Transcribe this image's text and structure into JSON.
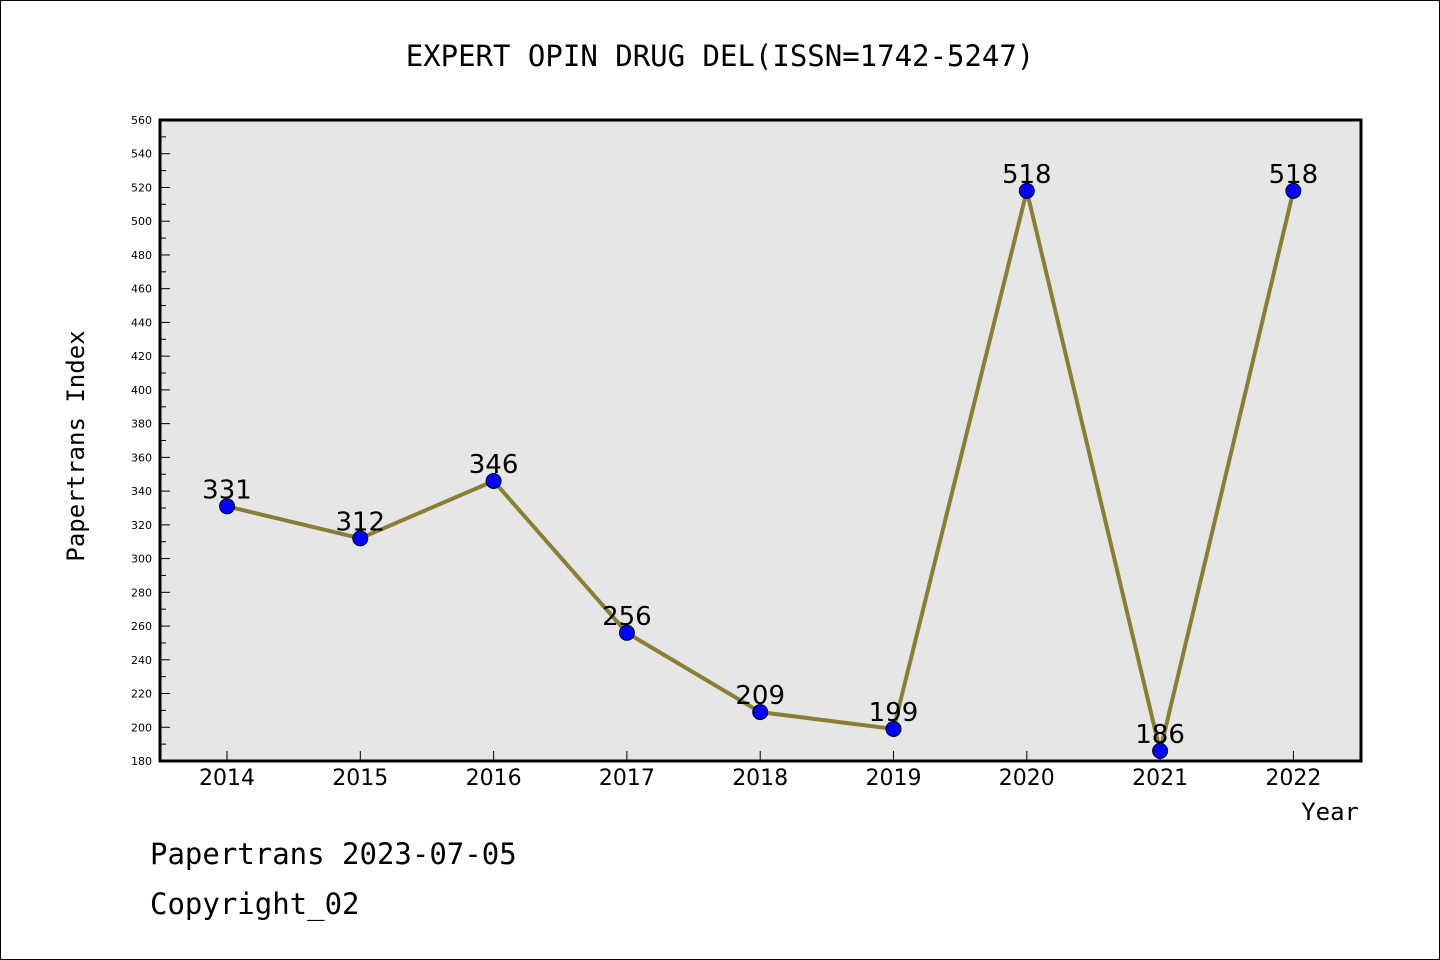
{
  "chart_data": {
    "type": "line",
    "title": "EXPERT OPIN DRUG DEL(ISSN=1742-5247)",
    "xlabel": "Year",
    "ylabel": "Papertrans Index",
    "categories": [
      "2014",
      "2015",
      "2016",
      "2017",
      "2018",
      "2019",
      "2020",
      "2021",
      "2022"
    ],
    "series": [
      {
        "values": [
          331,
          312,
          346,
          256,
          209,
          199,
          518,
          186,
          518
        ]
      }
    ],
    "ylim": [
      180,
      560
    ],
    "yticks": [
      180,
      200,
      220,
      240,
      260,
      280,
      300,
      320,
      340,
      360,
      380,
      400,
      420,
      440,
      460,
      480,
      500,
      520,
      540,
      560
    ],
    "grid": false,
    "legend": "none",
    "colors": {
      "line": "#8b7d35",
      "marker": "#0000ff",
      "plot_background": "#e6e6e6"
    }
  },
  "footer": {
    "line1": "Papertrans 2023-07-05",
    "line2": "Copyright_02"
  }
}
